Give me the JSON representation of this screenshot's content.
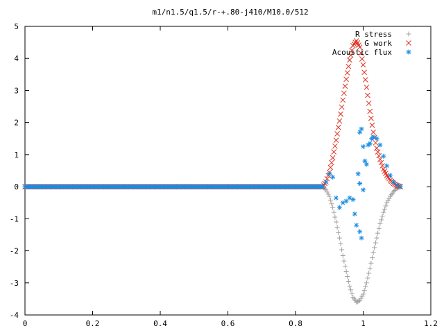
{
  "chart_data": {
    "type": "scatter",
    "title": "m1/n1.5/q1.5/r-+.80-j410/M10.0/512",
    "xlabel": "",
    "ylabel": "",
    "xlim": [
      0,
      1.2
    ],
    "ylim": [
      -4,
      5
    ],
    "x_ticks": [
      "0",
      "0.2",
      "0.4",
      "0.6",
      "0.8",
      "1",
      "1.2"
    ],
    "y_ticks": [
      "5",
      "4",
      "3",
      "2",
      "1",
      "0",
      "-1",
      "-2",
      "-3",
      "-4"
    ],
    "legend_position": "top-right",
    "grid": false,
    "series": [
      {
        "name": "R stress",
        "marker": "+",
        "color": "#a0a0a0",
        "points": [
          [
            0.0,
            0
          ],
          [
            0.1,
            0
          ],
          [
            0.2,
            0
          ],
          [
            0.3,
            0
          ],
          [
            0.4,
            0
          ],
          [
            0.5,
            0
          ],
          [
            0.6,
            0
          ],
          [
            0.7,
            0
          ],
          [
            0.8,
            0
          ],
          [
            0.88,
            0
          ],
          [
            0.89,
            -0.1
          ],
          [
            0.9,
            -0.3
          ],
          [
            0.91,
            -0.65
          ],
          [
            0.92,
            -1.1
          ],
          [
            0.93,
            -1.6
          ],
          [
            0.94,
            -2.15
          ],
          [
            0.95,
            -2.65
          ],
          [
            0.96,
            -3.1
          ],
          [
            0.97,
            -3.45
          ],
          [
            0.98,
            -3.6
          ],
          [
            0.99,
            -3.55
          ],
          [
            1.0,
            -3.35
          ],
          [
            1.01,
            -3.0
          ],
          [
            1.02,
            -2.55
          ],
          [
            1.03,
            -2.05
          ],
          [
            1.04,
            -1.6
          ],
          [
            1.05,
            -1.15
          ],
          [
            1.06,
            -0.8
          ],
          [
            1.07,
            -0.5
          ],
          [
            1.08,
            -0.3
          ],
          [
            1.09,
            -0.15
          ],
          [
            1.1,
            -0.05
          ],
          [
            1.11,
            0
          ]
        ]
      },
      {
        "name": "G work",
        "marker": "x",
        "color": "#e03020",
        "points": [
          [
            0.0,
            0
          ],
          [
            0.1,
            0
          ],
          [
            0.2,
            0
          ],
          [
            0.3,
            0
          ],
          [
            0.4,
            0
          ],
          [
            0.5,
            0
          ],
          [
            0.6,
            0
          ],
          [
            0.7,
            0
          ],
          [
            0.8,
            0
          ],
          [
            0.88,
            0
          ],
          [
            0.89,
            0.15
          ],
          [
            0.9,
            0.45
          ],
          [
            0.91,
            0.9
          ],
          [
            0.92,
            1.45
          ],
          [
            0.93,
            2.05
          ],
          [
            0.94,
            2.7
          ],
          [
            0.95,
            3.35
          ],
          [
            0.96,
            3.95
          ],
          [
            0.97,
            4.4
          ],
          [
            0.98,
            4.55
          ],
          [
            0.99,
            4.35
          ],
          [
            1.0,
            3.8
          ],
          [
            1.01,
            3.1
          ],
          [
            1.02,
            2.35
          ],
          [
            1.03,
            1.7
          ],
          [
            1.04,
            1.2
          ],
          [
            1.05,
            0.85
          ],
          [
            1.06,
            0.55
          ],
          [
            1.07,
            0.35
          ],
          [
            1.08,
            0.2
          ],
          [
            1.09,
            0.1
          ],
          [
            1.1,
            0.03
          ],
          [
            1.11,
            0
          ]
        ]
      },
      {
        "name": "Acoustic flux",
        "marker": "*",
        "color": "#1a8ce0",
        "points": [
          [
            0.0,
            0
          ],
          [
            0.1,
            0
          ],
          [
            0.2,
            0
          ],
          [
            0.3,
            0
          ],
          [
            0.4,
            0
          ],
          [
            0.5,
            0
          ],
          [
            0.6,
            0
          ],
          [
            0.7,
            0
          ],
          [
            0.8,
            0
          ],
          [
            0.88,
            0
          ],
          [
            0.89,
            0.15
          ],
          [
            0.9,
            0.4
          ],
          [
            0.91,
            0.3
          ],
          [
            0.92,
            -0.35
          ],
          [
            0.93,
            -0.65
          ],
          [
            0.94,
            -0.5
          ],
          [
            0.95,
            -0.45
          ],
          [
            0.96,
            -0.35
          ],
          [
            0.97,
            -0.4
          ],
          [
            0.975,
            -0.85
          ],
          [
            0.98,
            -1.2
          ],
          [
            0.99,
            -1.4
          ],
          [
            0.995,
            -1.6
          ],
          [
            0.985,
            0.4
          ],
          [
            0.99,
            0.1
          ],
          [
            1.0,
            -0.1
          ],
          [
            0.99,
            1.7
          ],
          [
            0.995,
            1.8
          ],
          [
            1.0,
            1.25
          ],
          [
            1.005,
            0.8
          ],
          [
            1.01,
            0.7
          ],
          [
            1.015,
            1.3
          ],
          [
            1.02,
            1.35
          ],
          [
            1.025,
            1.5
          ],
          [
            1.03,
            1.55
          ],
          [
            1.04,
            1.5
          ],
          [
            1.05,
            1.3
          ],
          [
            1.06,
            0.95
          ],
          [
            1.07,
            0.65
          ],
          [
            1.08,
            0.35
          ],
          [
            1.09,
            0.15
          ],
          [
            1.1,
            0.05
          ],
          [
            1.11,
            0
          ]
        ]
      }
    ]
  }
}
